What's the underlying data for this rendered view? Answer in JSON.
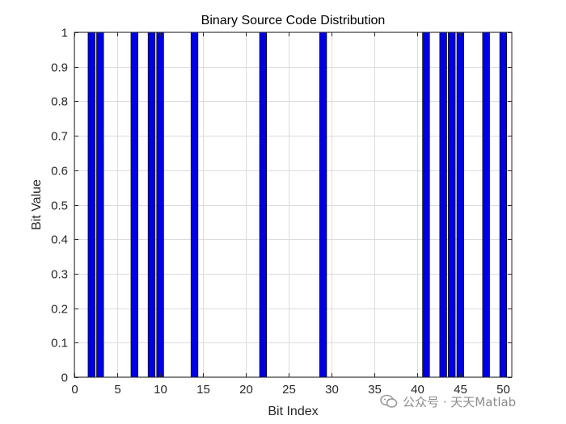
{
  "chart_data": {
    "type": "bar",
    "title": "Binary Source Code Distribution",
    "xlabel": "Bit Index",
    "ylabel": "Bit Value",
    "xlim": [
      0,
      51
    ],
    "ylim": [
      0,
      1
    ],
    "xticks": [
      0,
      5,
      10,
      15,
      20,
      25,
      30,
      35,
      40,
      45,
      50
    ],
    "yticks": [
      0,
      0.1,
      0.2,
      0.3,
      0.4,
      0.5,
      0.6,
      0.7,
      0.8,
      0.9,
      1
    ],
    "grid": true,
    "bar_color": "#0000e6",
    "bar_edge_color": "#000000",
    "x": [
      1,
      2,
      3,
      4,
      5,
      6,
      7,
      8,
      9,
      10,
      11,
      12,
      13,
      14,
      15,
      16,
      17,
      18,
      19,
      20,
      21,
      22,
      23,
      24,
      25,
      26,
      27,
      28,
      29,
      30,
      31,
      32,
      33,
      34,
      35,
      36,
      37,
      38,
      39,
      40,
      41,
      42,
      43,
      44,
      45,
      46,
      47,
      48,
      49,
      50
    ],
    "values": [
      0,
      1,
      1,
      0,
      0,
      0,
      1,
      0,
      1,
      1,
      0,
      0,
      0,
      1,
      0,
      0,
      0,
      0,
      0,
      0,
      0,
      1,
      0,
      0,
      0,
      0,
      0,
      0,
      1,
      0,
      0,
      0,
      0,
      0,
      0,
      0,
      0,
      0,
      0,
      0,
      1,
      0,
      1,
      1,
      1,
      0,
      0,
      1,
      0,
      1
    ]
  },
  "watermark": {
    "text": "公众号 · 天天Matlab",
    "icon": "wechat-icon"
  }
}
